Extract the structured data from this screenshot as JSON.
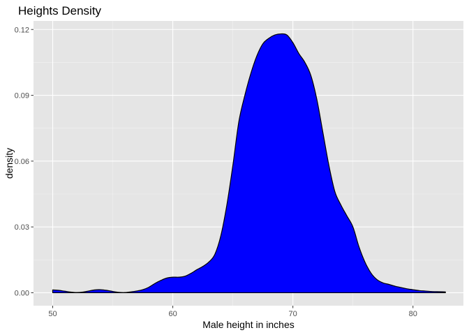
{
  "chart_data": {
    "type": "area",
    "title": "Heights Density",
    "xlabel": "Male height in inches",
    "ylabel": "density",
    "xlim": [
      48.4,
      84.2
    ],
    "ylim": [
      -0.0059,
      0.1239
    ],
    "x_ticks": [
      50,
      60,
      70,
      80
    ],
    "x_tick_labels": [
      "50",
      "60",
      "70",
      "80"
    ],
    "y_ticks": [
      0.0,
      0.03,
      0.06,
      0.09,
      0.12
    ],
    "y_tick_labels": [
      "0.00",
      "0.03",
      "0.06",
      "0.09",
      "0.12"
    ],
    "grid": true,
    "legend": "none",
    "colors": {
      "fill": "#0000ff",
      "outline": "#000000",
      "panel_background": "#e5e5e5",
      "grid_major": "#ffffff",
      "grid_minor": "#f2f2f2",
      "tick_text": "#4d4d4d"
    },
    "series": [
      {
        "x": [
          50,
          50.5,
          51,
          51.5,
          52,
          52.5,
          53,
          53.5,
          54,
          54.5,
          55,
          55.5,
          56,
          56.5,
          57,
          57.5,
          58,
          58.5,
          59,
          59.5,
          60,
          60.5,
          61,
          61.5,
          62,
          62.5,
          63,
          63.5,
          64,
          64.5,
          65,
          65.5,
          66,
          66.5,
          67,
          67.5,
          68,
          68.5,
          69,
          69.5,
          70,
          70.5,
          71,
          71.5,
          72,
          72.5,
          73,
          73.5,
          74,
          74.5,
          75,
          75.5,
          76,
          76.5,
          77,
          77.5,
          78,
          78.5,
          79,
          79.5,
          80,
          80.5,
          81,
          81.5,
          82,
          82.7
        ],
        "y": [
          0.0013,
          0.0011,
          0.0007,
          0.0003,
          0.0001,
          0.0003,
          0.0008,
          0.0013,
          0.0014,
          0.0011,
          0.0006,
          0.0002,
          0.0001,
          0.0004,
          0.0008,
          0.0014,
          0.0025,
          0.0042,
          0.0056,
          0.0067,
          0.0071,
          0.0071,
          0.0075,
          0.0088,
          0.0105,
          0.012,
          0.014,
          0.0175,
          0.026,
          0.04,
          0.058,
          0.078,
          0.09,
          0.1,
          0.108,
          0.1135,
          0.116,
          0.1175,
          0.118,
          0.1175,
          0.114,
          0.109,
          0.105,
          0.099,
          0.088,
          0.073,
          0.058,
          0.046,
          0.04,
          0.035,
          0.03,
          0.021,
          0.014,
          0.009,
          0.006,
          0.0045,
          0.0038,
          0.003,
          0.0024,
          0.0018,
          0.0014,
          0.001,
          0.0008,
          0.0006,
          0.0005,
          0.0004
        ]
      }
    ]
  }
}
